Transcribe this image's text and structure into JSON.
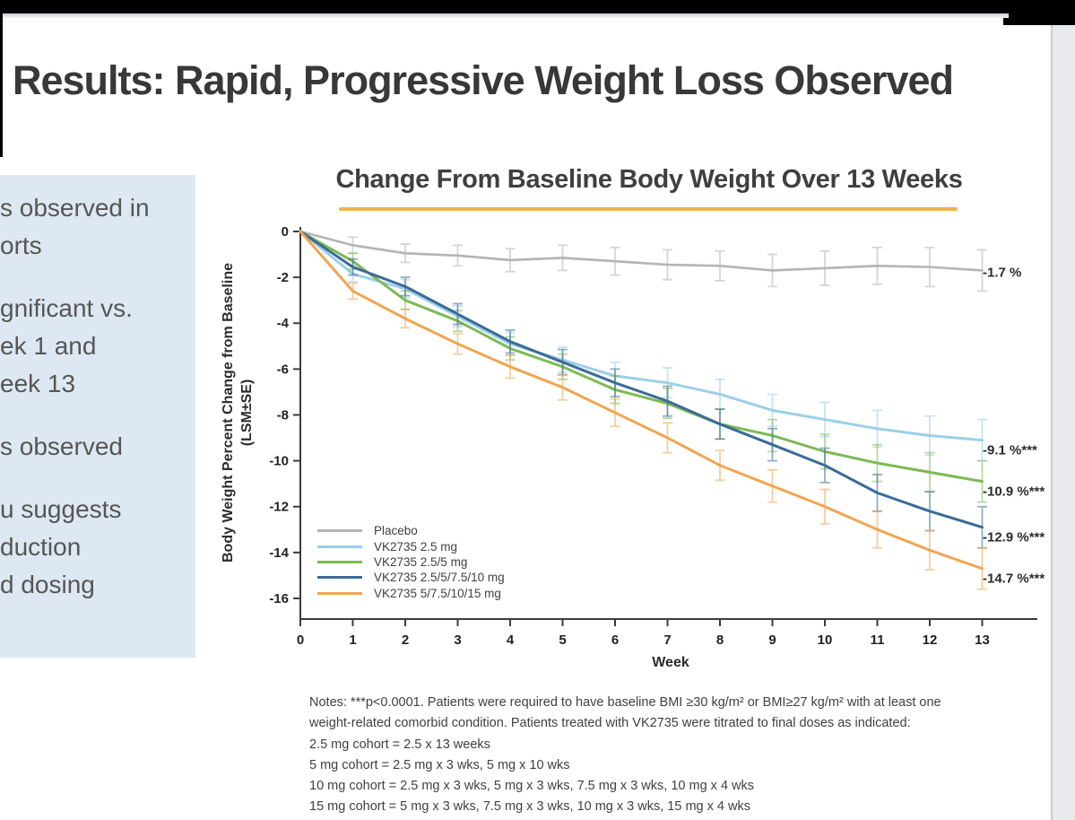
{
  "slide": {
    "title": "Results: Rapid, Progressive Weight Loss Observed",
    "sidebar_box_color": "#dde8f2",
    "sidebar_groups": [
      [
        "s observed in",
        "orts"
      ],
      [
        "gnificant vs.",
        "ek 1 and",
        "eek 13"
      ],
      [
        "s observed"
      ],
      [
        "u suggests",
        "duction",
        "d dosing"
      ]
    ]
  },
  "chart_data": {
    "type": "line",
    "title": "Change From Baseline Body Weight Over 13 Weeks",
    "xlabel": "Week",
    "ylabel_line1": "Body Weight Percent Change from Baseline",
    "ylabel_line2": "(LSM±SE)",
    "accent_underline_color": "#f0b14f",
    "axis_color": "#3c3c3c",
    "x": [
      0,
      1,
      2,
      3,
      4,
      5,
      6,
      7,
      8,
      9,
      10,
      11,
      12,
      13
    ],
    "yticks": [
      0,
      -2,
      -4,
      -6,
      -8,
      -10,
      -12,
      -14,
      -16
    ],
    "ylim": [
      -16,
      0
    ],
    "grid": false,
    "legend_position": "lower-left",
    "se_by_week": [
      0,
      0.35,
      0.4,
      0.45,
      0.5,
      0.55,
      0.6,
      0.65,
      0.65,
      0.7,
      0.75,
      0.8,
      0.85,
      0.9
    ],
    "series": [
      {
        "name": "Placebo",
        "color": "#b4b4b4",
        "end_label": "-1.7 %",
        "values": [
          0,
          -0.6,
          -0.95,
          -1.05,
          -1.25,
          -1.15,
          -1.3,
          -1.45,
          -1.5,
          -1.7,
          -1.6,
          -1.5,
          -1.55,
          -1.7
        ]
      },
      {
        "name": "VK2735 2.5 mg",
        "color": "#9bcfe9",
        "end_label": "-9.1 %***",
        "values": [
          0,
          -1.85,
          -2.5,
          -3.7,
          -4.9,
          -5.6,
          -6.3,
          -6.6,
          -7.1,
          -7.8,
          -8.2,
          -8.6,
          -8.9,
          -9.1
        ]
      },
      {
        "name": "VK2735 2.5/5 mg",
        "color": "#7cba55",
        "end_label": "-10.9 %***",
        "values": [
          0,
          -1.3,
          -3.0,
          -3.9,
          -5.1,
          -5.9,
          -6.9,
          -7.5,
          -8.4,
          -8.9,
          -9.6,
          -10.1,
          -10.5,
          -10.9
        ]
      },
      {
        "name": "VK2735 2.5/5/7.5/10 mg",
        "color": "#3a6b98",
        "end_label": "-12.9 %***",
        "values": [
          0,
          -1.55,
          -2.4,
          -3.6,
          -4.8,
          -5.7,
          -6.6,
          -7.4,
          -8.4,
          -9.3,
          -10.2,
          -11.4,
          -12.2,
          -12.9
        ]
      },
      {
        "name": "VK2735 5/7.5/10/15 mg",
        "color": "#f0a551",
        "end_label": "-14.7 %***",
        "values": [
          0,
          -2.6,
          -3.8,
          -4.9,
          -5.9,
          -6.8,
          -7.9,
          -9.0,
          -10.2,
          -11.1,
          -12.0,
          -13.0,
          -13.9,
          -14.7
        ]
      }
    ]
  },
  "notes": {
    "lines": [
      "Notes: ***p<0.0001. Patients were required to have baseline BMI ≥30 kg/m² or BMI≥27 kg/m² with at least one",
      "weight-related comorbid condition. Patients treated with VK2735 were titrated to final doses as indicated:",
      "2.5 mg cohort = 2.5 x 13 weeks",
      "5 mg cohort = 2.5 mg x 3 wks, 5 mg x 10 wks",
      "10 mg cohort = 2.5 mg x 3 wks, 5 mg x 3 wks, 7.5 mg x 3 wks, 10 mg x 4 wks",
      "15 mg cohort = 5 mg x 3 wks, 7.5 mg x 3 wks, 10 mg x 3 wks, 15 mg x 4 wks"
    ]
  }
}
